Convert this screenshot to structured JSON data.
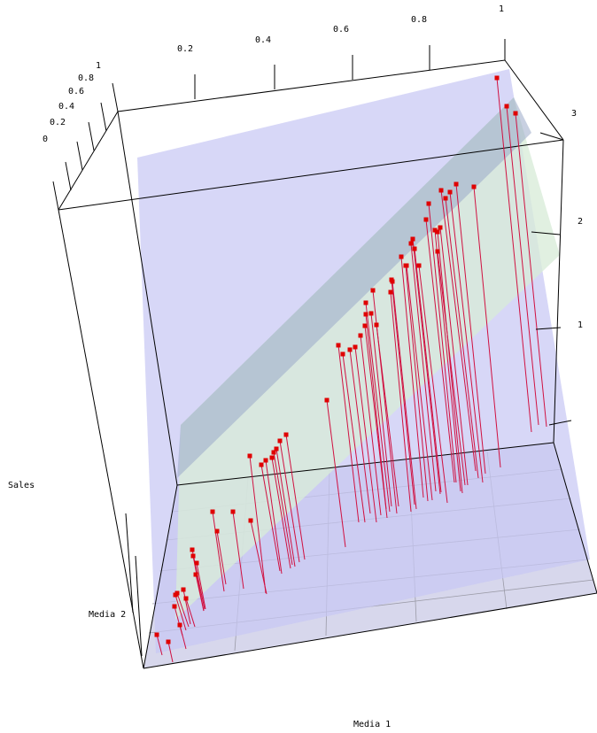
{
  "chart_data": {
    "type": "scatter",
    "view": "3d-perspective",
    "axes": {
      "x": {
        "label": "Media 1",
        "ticks": [
          "0.2",
          "0.4",
          "0.6",
          "0.8",
          "1"
        ]
      },
      "y": {
        "label": "Media 2",
        "ticks": [
          "0",
          "0.2",
          "0.4",
          "0.6",
          "0.8",
          "1"
        ]
      },
      "z": {
        "label": "Sales",
        "ticks": [
          "1",
          "2",
          "3"
        ]
      }
    },
    "surfaces": [
      {
        "kind": "fitted-plane",
        "color": "#c8c8f4",
        "opacity": 0.75
      },
      {
        "kind": "fitted-surface",
        "color": "#d9ecd9",
        "opacity": 0.85
      }
    ],
    "points": {
      "color": "#e00000",
      "drop_line_color": "#d01040",
      "count": 60
    },
    "colors": {
      "box": "#000000",
      "grid": "#9a9aa6",
      "floor": "#b7b7dd"
    }
  }
}
